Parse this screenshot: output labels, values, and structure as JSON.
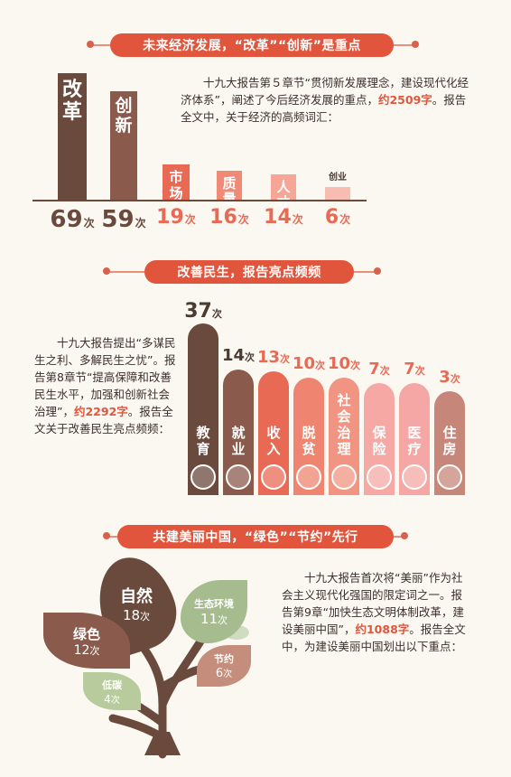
{
  "section1": {
    "banner": "未来经济发展，“改革”“创新”是重点",
    "text_before": "十九大报告第５章节“贯彻新发展理念，建设现代化经济体系”，阐述了今后经济发展的重点，",
    "highlight": "约2509字",
    "text_after": "。报告全文中，关于经济的高频词汇："
  },
  "section2": {
    "banner": "改善民生，报告亮点频频",
    "text_before": "十九大报告提出“多谋民生之利、多解民生之忧”。报告第8章节“提高保障和改善民生水平，加强和创新社会治理”，",
    "highlight": "约2292字",
    "text_after": "。报告全文关于改善民生亮点频频："
  },
  "section3": {
    "banner": "共建美丽中国，“绿色”“节约”先行",
    "text_before": "十九大报告首次将“美丽”作为社会主义现代化强国的限定词之一。报告第9章“加快生态文明体制改革，建设美丽中国”，",
    "highlight": "约1088字",
    "text_after": "。报告全文中，为建设美丽中国划出以下重点："
  },
  "unit": "次",
  "chart_data": [
    {
      "type": "bar",
      "categories": [
        "改革",
        "创新",
        "市场",
        "质量",
        "人才",
        "创业"
      ],
      "values": [
        69,
        59,
        19,
        16,
        14,
        6
      ],
      "colors": [
        "#6b4a3e",
        "#8a5a4c",
        "#e86a55",
        "#f08976",
        "#f5a696",
        "#f7bdb2"
      ]
    },
    {
      "type": "bar",
      "categories": [
        "教育",
        "就业",
        "收入",
        "脱贫",
        "社会治理",
        "保险",
        "医疗",
        "住房"
      ],
      "values": [
        37,
        14,
        13,
        10,
        10,
        7,
        7,
        3
      ],
      "colors": [
        "#6b4a3e",
        "#8a5a4c",
        "#e86a55",
        "#ef8470",
        "#f29482",
        "#f6a9a4",
        "#f5a7a5",
        "#c7867a"
      ],
      "icons": [
        "book-icon",
        "people-icon",
        "money-bag-icon",
        "handshake-icon",
        "police-badge-icon",
        "briefcase-icon",
        "stethoscope-icon",
        "house-icon"
      ]
    },
    {
      "type": "bar",
      "categories": [
        "自然",
        "生态环境",
        "绿色",
        "节约",
        "低碳"
      ],
      "values": [
        18,
        11,
        12,
        6,
        4
      ],
      "colors": [
        "#6b4a3e",
        "#a6bb8e",
        "#8a5a4c",
        "#c48d7c",
        "#b7cb9c"
      ]
    }
  ]
}
